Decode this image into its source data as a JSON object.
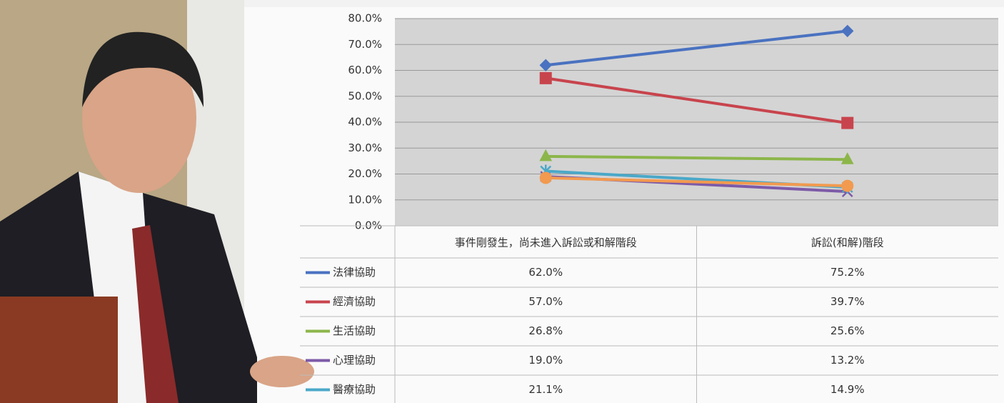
{
  "chart_data": {
    "type": "line",
    "categories": [
      "事件剛發生，尚未進入訴訟或和解階段",
      "訴訟(和解)階段"
    ],
    "series": [
      {
        "name": "法律協助",
        "color": "#4a72c0",
        "marker": "diamond",
        "values": [
          62.0,
          75.2
        ],
        "value_labels": [
          "62.0%",
          "75.2%"
        ]
      },
      {
        "name": "經濟協助",
        "color": "#c8444d",
        "marker": "square",
        "values": [
          57.0,
          39.7
        ],
        "value_labels": [
          "57.0%",
          "39.7%"
        ]
      },
      {
        "name": "生活協助",
        "color": "#8cb64a",
        "marker": "triangle",
        "values": [
          26.8,
          25.6
        ],
        "value_labels": [
          "26.8%",
          "25.6%"
        ]
      },
      {
        "name": "心理協助",
        "color": "#7d5aa8",
        "marker": "x",
        "values": [
          19.0,
          13.2
        ],
        "value_labels": [
          "19.0%",
          "13.2%"
        ]
      },
      {
        "name": "醫療協助",
        "color": "#4aa8c8",
        "marker": "star",
        "values": [
          21.1,
          14.9
        ],
        "value_labels": [
          "21.1%",
          "14.9%"
        ]
      },
      {
        "color": "#f29a4f",
        "marker": "circle",
        "values": [
          18.5,
          15.4
        ]
      }
    ],
    "ylim": [
      0,
      80
    ],
    "yticks": [
      {
        "value": 0,
        "label": "0.0%"
      },
      {
        "value": 10,
        "label": "10.0%"
      },
      {
        "value": 20,
        "label": "20.0%"
      },
      {
        "value": 30,
        "label": "30.0%"
      },
      {
        "value": 40,
        "label": "40.0%"
      },
      {
        "value": 50,
        "label": "50.0%"
      },
      {
        "value": 60,
        "label": "60.0%"
      },
      {
        "value": 70,
        "label": "70.0%"
      },
      {
        "value": 80,
        "label": "80.0%"
      }
    ],
    "grid": true
  }
}
